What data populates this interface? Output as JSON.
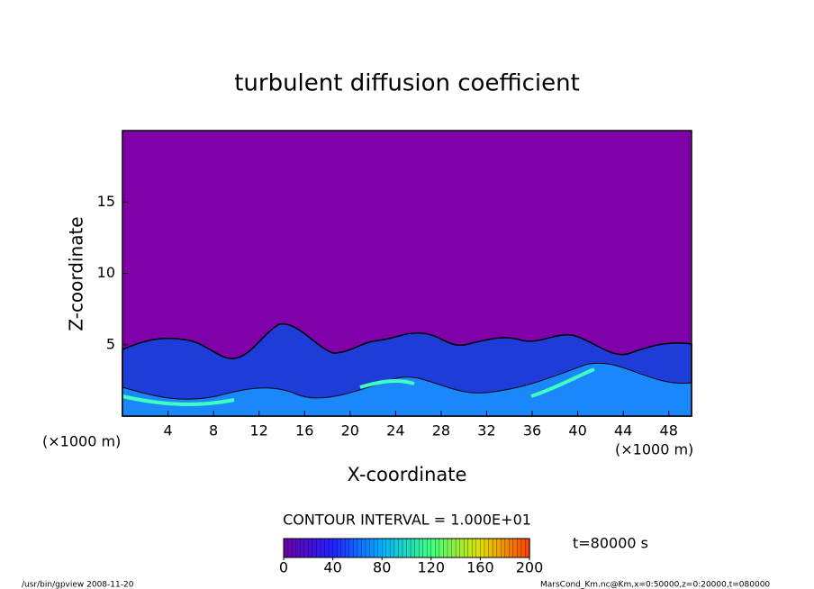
{
  "chart_data": {
    "type": "contour",
    "title": "turbulent diffusion coefficient",
    "xlabel": "X-coordinate",
    "ylabel": "Z-coordinate",
    "x_unit": "(×1000 m)",
    "y_unit": "(×1000 m)",
    "xlim": [
      0,
      50
    ],
    "xticks": [
      4,
      8,
      12,
      16,
      20,
      24,
      28,
      32,
      36,
      40,
      44,
      48
    ],
    "ylim": [
      0,
      20
    ],
    "yticks": [
      5,
      10,
      15
    ],
    "background_color": "#7f00a8",
    "contour_interval_label": "CONTOUR INTERVAL = 1.000E+01",
    "colorbar": {
      "range": [
        0,
        200
      ],
      "ticks": [
        0,
        40,
        80,
        120,
        160,
        200
      ],
      "colors": [
        "#6a00a8",
        "#2020ff",
        "#00b0ff",
        "#40ff80",
        "#e0e000",
        "#ff4000"
      ]
    },
    "time_label": "t=80000 s",
    "footer_left": "/usr/bin/gpview  2008-11-20",
    "footer_right": "MarsCond_Km.nc@Km,x=0:50000,z=0:20000,t=080000"
  }
}
